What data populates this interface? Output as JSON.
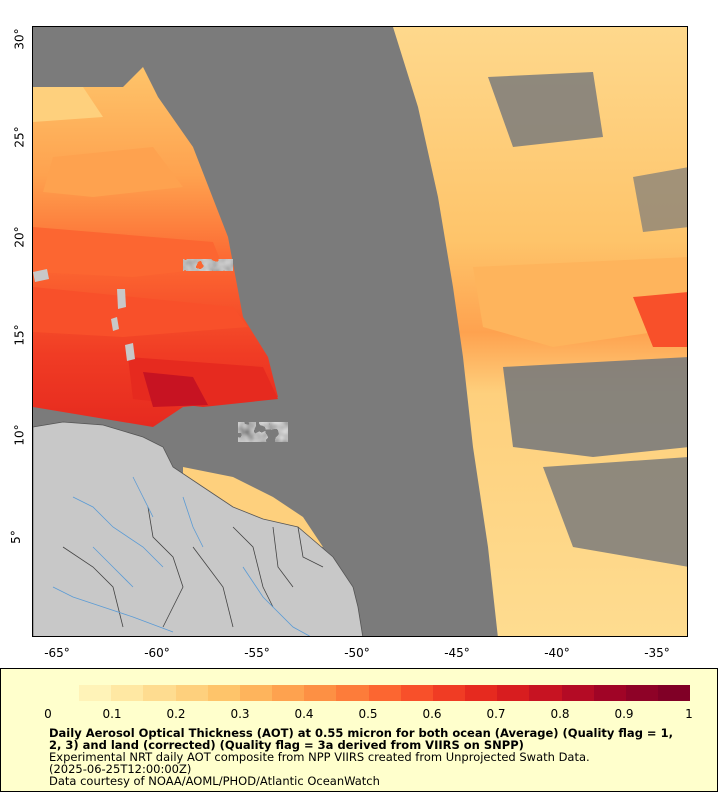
{
  "map": {
    "x_axis": {
      "ticks": [
        "-65°",
        "-60°",
        "-55°",
        "-50°",
        "-45°",
        "-40°",
        "-35°"
      ],
      "values": [
        -65,
        -60,
        -55,
        -50,
        -45,
        -40,
        -35
      ],
      "range": [
        -66.2,
        -33.4
      ]
    },
    "y_axis": {
      "ticks": [
        "5°",
        "10°",
        "15°",
        "20°",
        "25°",
        "30°"
      ],
      "values": [
        5,
        10,
        15,
        20,
        25,
        30
      ],
      "range": [
        0.2,
        30.6
      ]
    },
    "colors": {
      "no_data": "#7b7b7b",
      "land": "#c8c8c8",
      "coast": "#555555",
      "rivers": "#5b9bd5"
    }
  },
  "legend": {
    "scale_labels": [
      "0",
      "0.1",
      "0.2",
      "0.3",
      "0.4",
      "0.5",
      "0.6",
      "0.7",
      "0.8",
      "0.9",
      "1"
    ],
    "scale_values": [
      0,
      0.1,
      0.2,
      0.3,
      0.4,
      0.5,
      0.6,
      0.7,
      0.8,
      0.9,
      1
    ],
    "colors": [
      "#ffffcc",
      "#fff3b8",
      "#ffe8a3",
      "#fedc90",
      "#fed07d",
      "#fec46a",
      "#feb45c",
      "#fea24f",
      "#fd9044",
      "#fd7c3a",
      "#fc6631",
      "#f8502a",
      "#f03c24",
      "#e62a1f",
      "#d81d1f",
      "#c71322",
      "#b40b25",
      "#a00426",
      "#8e0227",
      "#800026"
    ],
    "title": "Daily Aerosol Optical Thickness (AOT) at 0.55 micron for both ocean (Average) (Quality flag = 1, 2, 3) and land (corrected) (Quality flag = 3a derived from VIIRS on SNPP)",
    "line1": "Experimental NRT daily AOT composite from NPP VIIRS created from Unprojected Swath Data.",
    "line2": "(2025-06-25T12:00:00Z)",
    "line3": "Data courtesy of NOAA/AOML/PHOD/Atlantic OceanWatch"
  }
}
